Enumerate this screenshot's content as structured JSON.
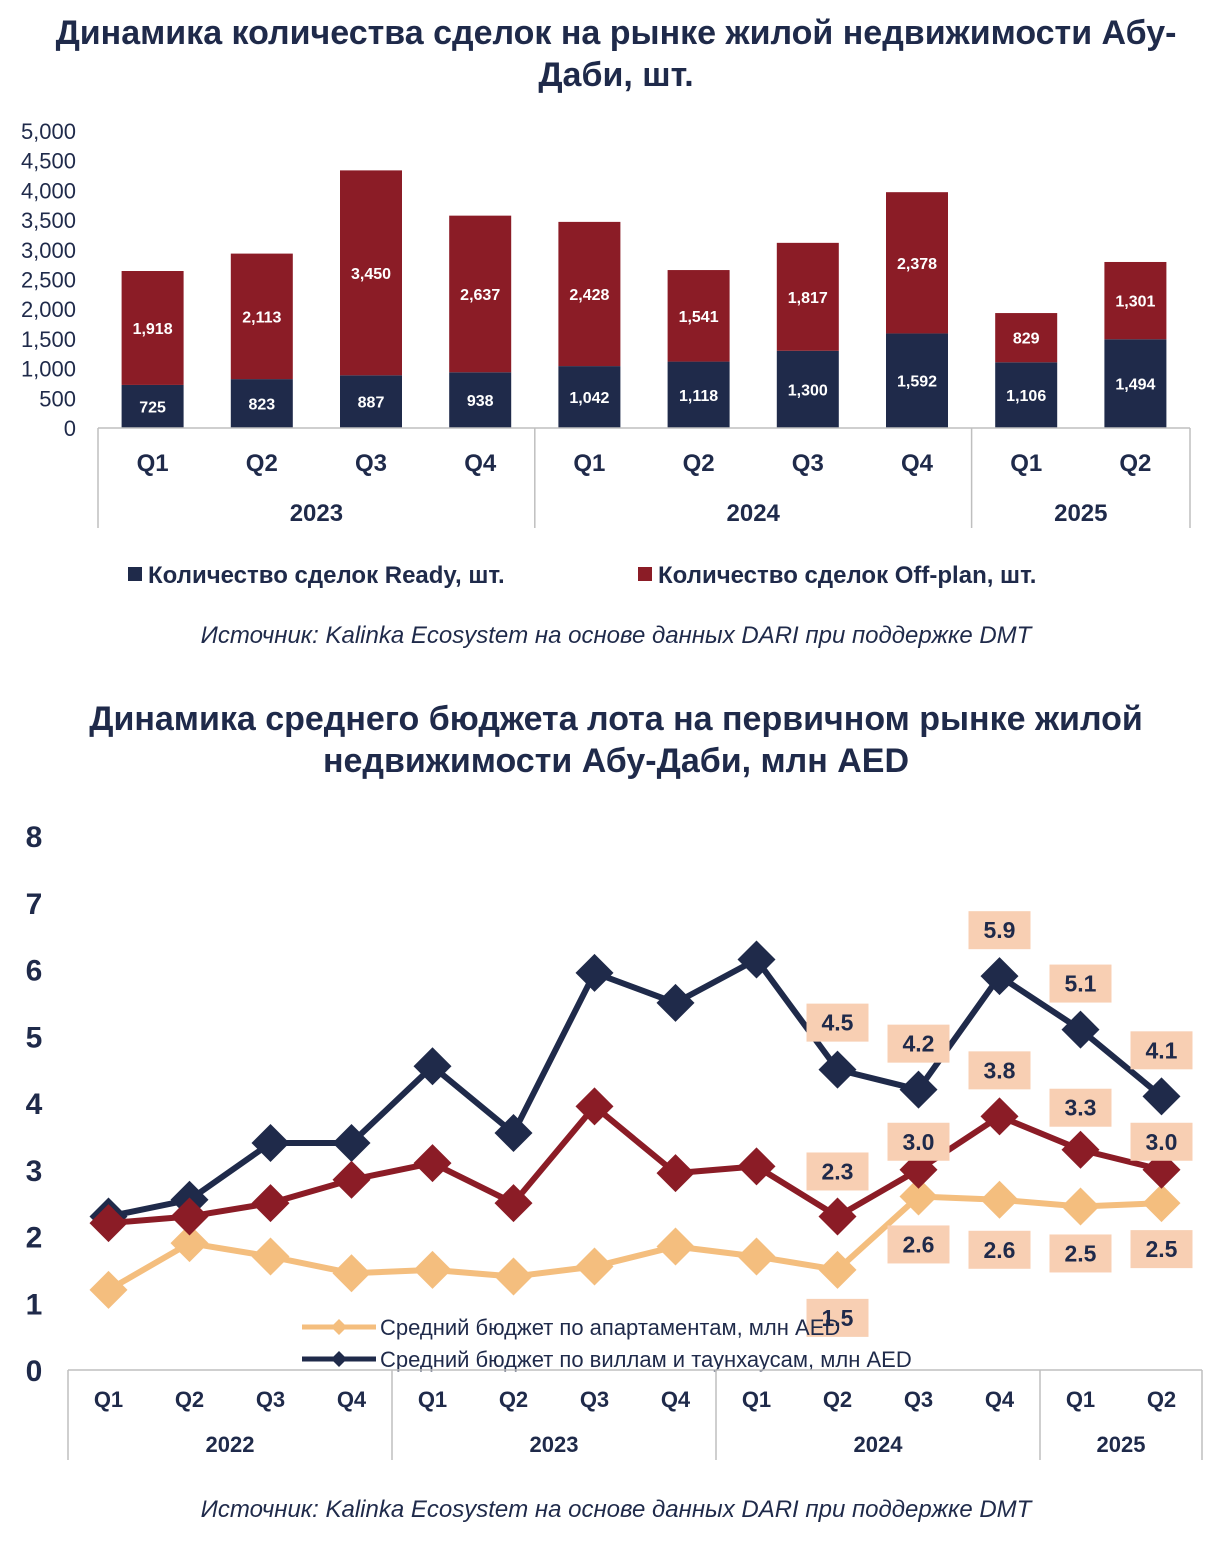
{
  "chart_data": [
    {
      "type": "bar",
      "stacked": true,
      "title": "Динамика количества сделок на рынке жилой недвижимости Абу-Даби, шт.",
      "title_lines": [
        "Динамика количества сделок на рынке жилой недвижимости Абу-",
        "Даби, шт."
      ],
      "categories": [
        "Q1",
        "Q2",
        "Q3",
        "Q4",
        "Q1",
        "Q2",
        "Q3",
        "Q4",
        "Q1",
        "Q2"
      ],
      "year_groups": [
        {
          "label": "2023",
          "count": 4
        },
        {
          "label": "2024",
          "count": 4
        },
        {
          "label": "2025",
          "count": 2
        }
      ],
      "series": [
        {
          "name": "Количество сделок Ready, шт.",
          "color": "#1f2a4a",
          "values": [
            725,
            823,
            887,
            938,
            1042,
            1118,
            1300,
            1592,
            1106,
            1494
          ]
        },
        {
          "name": "Количество сделок Off-plan, шт.",
          "color": "#8b1c26",
          "values": [
            1918,
            2113,
            3450,
            2637,
            2428,
            1541,
            1817,
            2378,
            829,
            1301
          ]
        }
      ],
      "ylim": [
        0,
        5000
      ],
      "yticks": [
        0,
        500,
        1000,
        1500,
        2000,
        2500,
        3000,
        3500,
        4000,
        4500,
        5000
      ],
      "legend_position": "bottom",
      "source": "Источник: Kalinka Ecosystem на основе данных DARI при поддержке DMT"
    },
    {
      "type": "line",
      "title": "Динамика среднего бюджета лота на первичном рынке жилой недвижимости Абу-Даби, млн AED",
      "title_lines": [
        "Динамика среднего бюджета лота на первичном рынке жилой",
        "недвижимости Абу-Даби, млн AED"
      ],
      "categories": [
        "Q1",
        "Q2",
        "Q3",
        "Q4",
        "Q1",
        "Q2",
        "Q3",
        "Q4",
        "Q1",
        "Q2",
        "Q3",
        "Q4",
        "Q1",
        "Q2"
      ],
      "year_groups": [
        {
          "label": "2022",
          "count": 4
        },
        {
          "label": "2023",
          "count": 4
        },
        {
          "label": "2024",
          "count": 4
        },
        {
          "label": "2025",
          "count": 2
        }
      ],
      "series": [
        {
          "name": "Средний бюджет по апартаментам, млн AED",
          "color": "#f4be7e",
          "in_legend": true,
          "values": [
            1.2,
            1.9,
            1.7,
            1.45,
            1.5,
            1.4,
            1.55,
            1.85,
            1.7,
            1.5,
            2.6,
            2.55,
            2.45,
            2.5
          ],
          "labels": [
            null,
            null,
            null,
            null,
            null,
            null,
            null,
            null,
            null,
            "1.5",
            "2.6",
            "2.6",
            "2.5",
            "2.5"
          ]
        },
        {
          "name": "Средний бюджет по виллам и таунхаусам, млн AED",
          "color": "#1f2a4a",
          "in_legend": true,
          "values": [
            2.3,
            2.55,
            3.4,
            3.4,
            4.55,
            3.55,
            5.95,
            5.5,
            6.15,
            4.5,
            4.2,
            5.9,
            5.1,
            4.1
          ],
          "labels": [
            null,
            null,
            null,
            null,
            null,
            null,
            null,
            null,
            null,
            "4.5",
            "4.2",
            "5.9",
            "5.1",
            "4.1"
          ]
        },
        {
          "name": "",
          "color": "#8b1c26",
          "in_legend": false,
          "values": [
            2.2,
            2.3,
            2.5,
            2.85,
            3.1,
            2.5,
            3.95,
            2.95,
            3.05,
            2.3,
            3.0,
            3.8,
            3.3,
            3.0
          ],
          "labels": [
            null,
            null,
            null,
            null,
            null,
            null,
            null,
            null,
            null,
            "2.3",
            "3.0",
            "3.8",
            "3.3",
            "3.0"
          ]
        }
      ],
      "ylim": [
        0,
        8
      ],
      "yticks": [
        0,
        1,
        2,
        3,
        4,
        5,
        6,
        7,
        8
      ],
      "label_box_color": "#f8cfb3",
      "legend_position": "bottom-center",
      "source": "Источник: Kalinka Ecosystem на основе данных DARI при поддержке DMT"
    }
  ]
}
